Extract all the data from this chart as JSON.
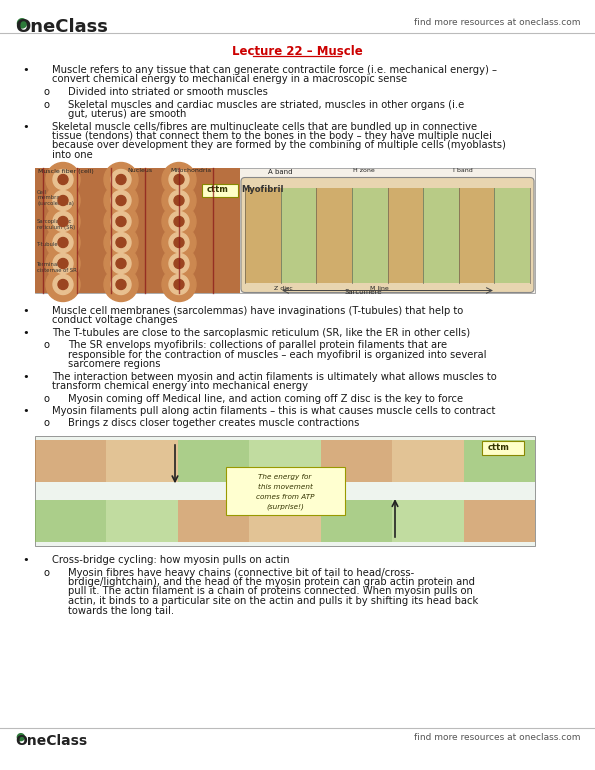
{
  "bg_color": "#ffffff",
  "oneclass_green": "#2d7a3a",
  "find_more_text": "find more resources at oneclass.com",
  "title": "Lecture 22 – Muscle",
  "title_color": "#cc0000",
  "body_text_color": "#1a1a1a",
  "body_fontsize": 7.2,
  "title_fontsize": 8.5,
  "content_lines": [
    {
      "type": "bullet",
      "text": "Muscle refers to any tissue that can generate contractile force (i.e. mechanical energy) –\nconvert chemical energy to mechanical energy in a macroscopic sense"
    },
    {
      "type": "sub",
      "text": "Divided into striated or smooth muscles"
    },
    {
      "type": "sub",
      "text": "Skeletal muscles and cardiac muscles are striated, muscles in other organs (i.e\ngut, uterus) are smooth"
    },
    {
      "type": "bullet",
      "text": "Skeletal muscle cells/fibres are multinucleate cells that are bundled up in connective\ntissue (tendons) that connect them to the bones in the body – they have multiple nuclei\nbecause over development they are formed by the combining of multiple cells (myoblasts)\ninto one"
    },
    {
      "type": "image1",
      "text": ""
    },
    {
      "type": "bullet",
      "text": "Muscle cell membranes (sarcolemmas) have invaginations (T-tubules) that help to\nconduct voltage changes"
    },
    {
      "type": "bullet",
      "text": "The T-tubules are close to the sarcoplasmic reticulum (SR, like the ER in other cells)"
    },
    {
      "type": "sub",
      "text": "The SR envelops myofibrils: collections of parallel protein filaments that are\nresponsible for the contraction of muscles – each myofibril is organized into several\nsarcomere regions"
    },
    {
      "type": "bullet",
      "text": "The interaction between myosin and actin filaments is ultimately what allows muscles to\ntransform chemical energy into mechanical energy"
    },
    {
      "type": "sub",
      "text": "Myosin coming off Medical line, and action coming off Z disc is the key to force"
    },
    {
      "type": "bullet",
      "text": "Myosin filaments pull along actin filaments – this is what causes muscle cells to contract"
    },
    {
      "type": "sub",
      "text": "Brings z discs closer together creates muscle contractions"
    },
    {
      "type": "image2",
      "text": ""
    },
    {
      "type": "bullet",
      "text": "Cross-bridge cycling: how myosin pulls on actin"
    },
    {
      "type": "sub",
      "text": "Myosin fibres have heavy chains (connective bit of tail to head/cross-\nbrdige/lightchain), and the head of the myosin protein can grab actin protein and\npull it. The actin filament is a chain of proteins connected. When myosin pulls on\nactin, it binds to a particular site on the actin and pulls it by shifting its head back\ntowards the long tail."
    }
  ]
}
